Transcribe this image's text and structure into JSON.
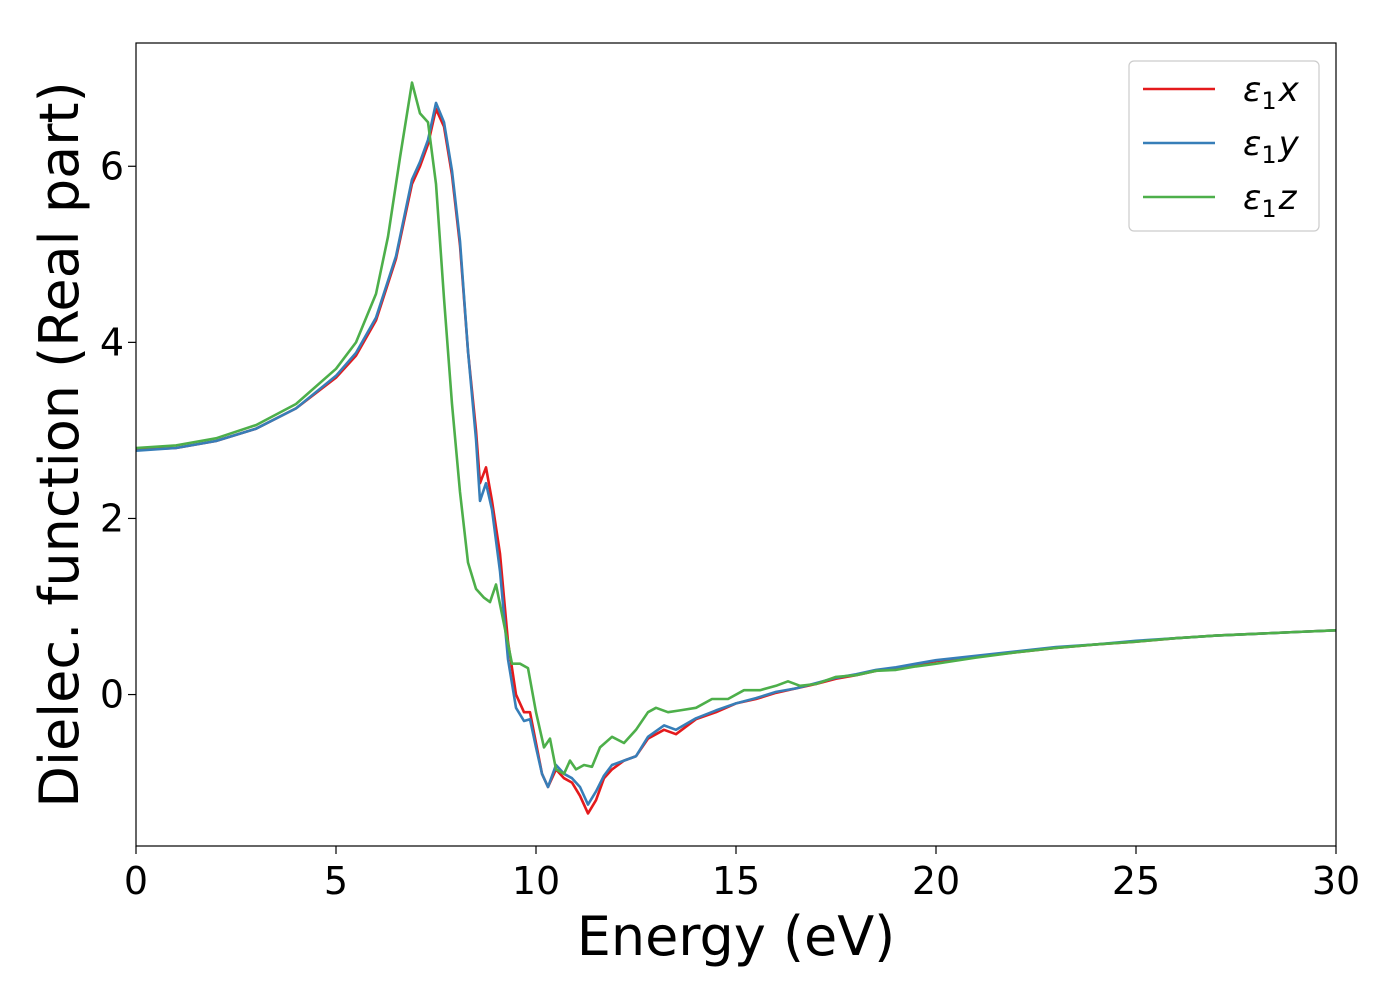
{
  "chart_data": {
    "type": "line",
    "title": "",
    "xlabel": "Energy (eV)",
    "ylabel": "Dielec. function (Real part)",
    "xlim": [
      0,
      30
    ],
    "ylim": [
      -1.72,
      7.4
    ],
    "xticks": [
      0,
      5,
      10,
      15,
      20,
      25,
      30
    ],
    "yticks": [
      0,
      2,
      4,
      6
    ],
    "grid": false,
    "legend_position": "top-right",
    "series": [
      {
        "name": "ε₁x",
        "legend_main": "ε",
        "legend_sub": "1",
        "legend_var": "x",
        "color": "#e41a1c",
        "points": [
          [
            0,
            2.78
          ],
          [
            1,
            2.8
          ],
          [
            2,
            2.88
          ],
          [
            3,
            3.02
          ],
          [
            4,
            3.25
          ],
          [
            5,
            3.6
          ],
          [
            5.5,
            3.85
          ],
          [
            6,
            4.25
          ],
          [
            6.5,
            4.95
          ],
          [
            6.9,
            5.8
          ],
          [
            7.1,
            6.0
          ],
          [
            7.3,
            6.25
          ],
          [
            7.5,
            6.65
          ],
          [
            7.7,
            6.45
          ],
          [
            7.9,
            5.9
          ],
          [
            8.1,
            5.1
          ],
          [
            8.3,
            3.9
          ],
          [
            8.5,
            3.0
          ],
          [
            8.6,
            2.4
          ],
          [
            8.75,
            2.58
          ],
          [
            8.9,
            2.2
          ],
          [
            9.1,
            1.6
          ],
          [
            9.3,
            0.6
          ],
          [
            9.5,
            0.0
          ],
          [
            9.7,
            -0.2
          ],
          [
            9.85,
            -0.2
          ],
          [
            10,
            -0.55
          ],
          [
            10.15,
            -0.9
          ],
          [
            10.3,
            -1.05
          ],
          [
            10.5,
            -0.85
          ],
          [
            10.7,
            -0.95
          ],
          [
            10.9,
            -1.0
          ],
          [
            11.1,
            -1.15
          ],
          [
            11.3,
            -1.35
          ],
          [
            11.5,
            -1.2
          ],
          [
            11.7,
            -0.95
          ],
          [
            11.9,
            -0.85
          ],
          [
            12.2,
            -0.75
          ],
          [
            12.5,
            -0.7
          ],
          [
            12.8,
            -0.5
          ],
          [
            13.2,
            -0.4
          ],
          [
            13.5,
            -0.45
          ],
          [
            14,
            -0.28
          ],
          [
            14.5,
            -0.2
          ],
          [
            15,
            -0.1
          ],
          [
            15.5,
            -0.05
          ],
          [
            16,
            0.02
          ],
          [
            16.5,
            0.07
          ],
          [
            17,
            0.12
          ],
          [
            17.5,
            0.18
          ],
          [
            18,
            0.22
          ],
          [
            18.5,
            0.27
          ],
          [
            19,
            0.3
          ],
          [
            19.5,
            0.34
          ],
          [
            20,
            0.38
          ],
          [
            21,
            0.43
          ],
          [
            22,
            0.48
          ],
          [
            23,
            0.53
          ],
          [
            24,
            0.57
          ],
          [
            25,
            0.6
          ],
          [
            26,
            0.64
          ],
          [
            27,
            0.67
          ],
          [
            28,
            0.69
          ],
          [
            29,
            0.71
          ],
          [
            30,
            0.73
          ]
        ]
      },
      {
        "name": "ε₁y",
        "legend_main": "ε",
        "legend_sub": "1",
        "legend_var": "y",
        "color": "#377eb8",
        "points": [
          [
            0,
            2.77
          ],
          [
            1,
            2.8
          ],
          [
            2,
            2.88
          ],
          [
            3,
            3.02
          ],
          [
            4,
            3.25
          ],
          [
            5,
            3.62
          ],
          [
            5.5,
            3.88
          ],
          [
            6,
            4.28
          ],
          [
            6.5,
            4.98
          ],
          [
            6.9,
            5.85
          ],
          [
            7.1,
            6.05
          ],
          [
            7.3,
            6.3
          ],
          [
            7.5,
            6.72
          ],
          [
            7.7,
            6.5
          ],
          [
            7.9,
            5.95
          ],
          [
            8.1,
            5.15
          ],
          [
            8.3,
            3.9
          ],
          [
            8.5,
            2.9
          ],
          [
            8.6,
            2.2
          ],
          [
            8.75,
            2.4
          ],
          [
            8.9,
            2.1
          ],
          [
            9.1,
            1.4
          ],
          [
            9.3,
            0.4
          ],
          [
            9.5,
            -0.15
          ],
          [
            9.7,
            -0.3
          ],
          [
            9.85,
            -0.28
          ],
          [
            10,
            -0.6
          ],
          [
            10.15,
            -0.9
          ],
          [
            10.3,
            -1.05
          ],
          [
            10.5,
            -0.8
          ],
          [
            10.7,
            -0.9
          ],
          [
            10.9,
            -0.95
          ],
          [
            11.1,
            -1.05
          ],
          [
            11.3,
            -1.25
          ],
          [
            11.5,
            -1.1
          ],
          [
            11.7,
            -0.92
          ],
          [
            11.9,
            -0.8
          ],
          [
            12.2,
            -0.75
          ],
          [
            12.5,
            -0.7
          ],
          [
            12.8,
            -0.48
          ],
          [
            13.2,
            -0.35
          ],
          [
            13.5,
            -0.4
          ],
          [
            14,
            -0.27
          ],
          [
            14.5,
            -0.18
          ],
          [
            15,
            -0.1
          ],
          [
            15.5,
            -0.04
          ],
          [
            16,
            0.03
          ],
          [
            16.5,
            0.07
          ],
          [
            17,
            0.13
          ],
          [
            17.5,
            0.19
          ],
          [
            18,
            0.23
          ],
          [
            18.5,
            0.28
          ],
          [
            19,
            0.31
          ],
          [
            19.5,
            0.35
          ],
          [
            20,
            0.39
          ],
          [
            21,
            0.44
          ],
          [
            22,
            0.49
          ],
          [
            23,
            0.54
          ],
          [
            24,
            0.57
          ],
          [
            25,
            0.61
          ],
          [
            26,
            0.64
          ],
          [
            27,
            0.67
          ],
          [
            28,
            0.69
          ],
          [
            29,
            0.71
          ],
          [
            30,
            0.73
          ]
        ]
      },
      {
        "name": "ε₁z",
        "legend_main": "ε",
        "legend_sub": "1",
        "legend_var": "z",
        "color": "#4daf4a",
        "points": [
          [
            0,
            2.8
          ],
          [
            1,
            2.83
          ],
          [
            2,
            2.91
          ],
          [
            3,
            3.06
          ],
          [
            4,
            3.3
          ],
          [
            5,
            3.7
          ],
          [
            5.5,
            4.0
          ],
          [
            6,
            4.55
          ],
          [
            6.3,
            5.2
          ],
          [
            6.6,
            6.1
          ],
          [
            6.9,
            6.95
          ],
          [
            7.1,
            6.6
          ],
          [
            7.3,
            6.5
          ],
          [
            7.5,
            5.8
          ],
          [
            7.7,
            4.5
          ],
          [
            7.9,
            3.3
          ],
          [
            8.1,
            2.3
          ],
          [
            8.3,
            1.5
          ],
          [
            8.5,
            1.2
          ],
          [
            8.7,
            1.1
          ],
          [
            8.85,
            1.05
          ],
          [
            9.0,
            1.25
          ],
          [
            9.2,
            0.8
          ],
          [
            9.4,
            0.35
          ],
          [
            9.6,
            0.35
          ],
          [
            9.8,
            0.3
          ],
          [
            10.0,
            -0.2
          ],
          [
            10.2,
            -0.6
          ],
          [
            10.35,
            -0.5
          ],
          [
            10.5,
            -0.85
          ],
          [
            10.7,
            -0.9
          ],
          [
            10.85,
            -0.75
          ],
          [
            11.0,
            -0.85
          ],
          [
            11.2,
            -0.8
          ],
          [
            11.4,
            -0.82
          ],
          [
            11.6,
            -0.6
          ],
          [
            11.9,
            -0.48
          ],
          [
            12.2,
            -0.55
          ],
          [
            12.5,
            -0.4
          ],
          [
            12.8,
            -0.2
          ],
          [
            13.0,
            -0.15
          ],
          [
            13.3,
            -0.2
          ],
          [
            13.6,
            -0.18
          ],
          [
            14.0,
            -0.15
          ],
          [
            14.4,
            -0.05
          ],
          [
            14.8,
            -0.05
          ],
          [
            15.2,
            0.05
          ],
          [
            15.6,
            0.05
          ],
          [
            16.0,
            0.1
          ],
          [
            16.3,
            0.15
          ],
          [
            16.6,
            0.1
          ],
          [
            17.0,
            0.12
          ],
          [
            17.5,
            0.2
          ],
          [
            18,
            0.22
          ],
          [
            18.5,
            0.27
          ],
          [
            19,
            0.28
          ],
          [
            19.5,
            0.32
          ],
          [
            20,
            0.35
          ],
          [
            21,
            0.42
          ],
          [
            22,
            0.48
          ],
          [
            23,
            0.53
          ],
          [
            24,
            0.57
          ],
          [
            25,
            0.6
          ],
          [
            26,
            0.64
          ],
          [
            27,
            0.67
          ],
          [
            28,
            0.69
          ],
          [
            29,
            0.71
          ],
          [
            30,
            0.73
          ]
        ]
      }
    ]
  }
}
